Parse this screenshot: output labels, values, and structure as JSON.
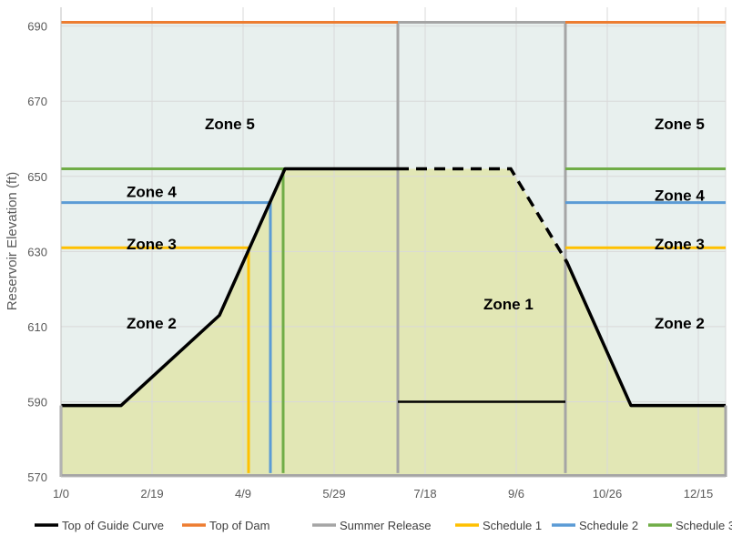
{
  "chart_data": {
    "type": "line",
    "title": "",
    "xlabel": "",
    "ylabel": "Reservoir Elevation (ft)",
    "xlim": [
      0,
      365
    ],
    "ylim": [
      570,
      695
    ],
    "x_tick_labels": [
      {
        "x": 0,
        "label": "1/0"
      },
      {
        "x": 50,
        "label": "2/19"
      },
      {
        "x": 100,
        "label": "4/9"
      },
      {
        "x": 150,
        "label": "5/29"
      },
      {
        "x": 200,
        "label": "7/18"
      },
      {
        "x": 250,
        "label": "9/6"
      },
      {
        "x": 300,
        "label": "10/26"
      },
      {
        "x": 350,
        "label": "12/15"
      }
    ],
    "y_ticks": [
      570,
      590,
      610,
      630,
      650,
      670,
      690
    ],
    "grid": true,
    "legend_position": "bottom",
    "series": [
      {
        "name": "Top of Guide Curve",
        "color": "#000000",
        "x": [
          0,
          33,
          87,
          123,
          185,
          247,
          278,
          313,
          365
        ],
        "y": [
          589,
          589,
          613,
          652,
          652,
          652,
          627,
          589,
          589
        ]
      },
      {
        "name": "Top of Dam",
        "color": "#ED7D31",
        "x": [
          0,
          365
        ],
        "y": [
          691,
          691
        ]
      },
      {
        "name": "Summer Release",
        "color": "#A5A5A5",
        "x": [
          185,
          185,
          277,
          277
        ],
        "y": [
          571,
          691,
          691,
          571
        ]
      },
      {
        "name": "Schedule 1",
        "color": "#FFC000",
        "x": [
          0,
          103,
          103
        ],
        "y": [
          631,
          631,
          571
        ]
      },
      {
        "name": "Schedule 2",
        "color": "#5B9BD5",
        "x": [
          0,
          115,
          115
        ],
        "y": [
          643,
          643,
          571
        ]
      },
      {
        "name": "Schedule 3",
        "color": "#70AD47",
        "x": [
          0,
          122,
          122
        ],
        "y": [
          652,
          652,
          571
        ]
      }
    ],
    "zones": [
      {
        "label": "Zone 5",
        "x": 79,
        "y": 664
      },
      {
        "label": "Zone 4",
        "x": 36,
        "y": 646
      },
      {
        "label": "Zone 3",
        "x": 36,
        "y": 632
      },
      {
        "label": "Zone 2",
        "x": 36,
        "y": 611
      },
      {
        "label": "Zone 1",
        "x": 232,
        "y": 616
      },
      {
        "label": "Zone 5",
        "x": 326,
        "y": 664
      },
      {
        "label": "Zone 4",
        "x": 326,
        "y": 645
      },
      {
        "label": "Zone 3",
        "x": 326,
        "y": 632
      },
      {
        "label": "Zone 2",
        "x": 326,
        "y": 611
      }
    ],
    "summer_min_level": 590,
    "colors": {
      "background_fill": "#E8F0EE",
      "conservation_fill": "#E2E7B5"
    }
  }
}
